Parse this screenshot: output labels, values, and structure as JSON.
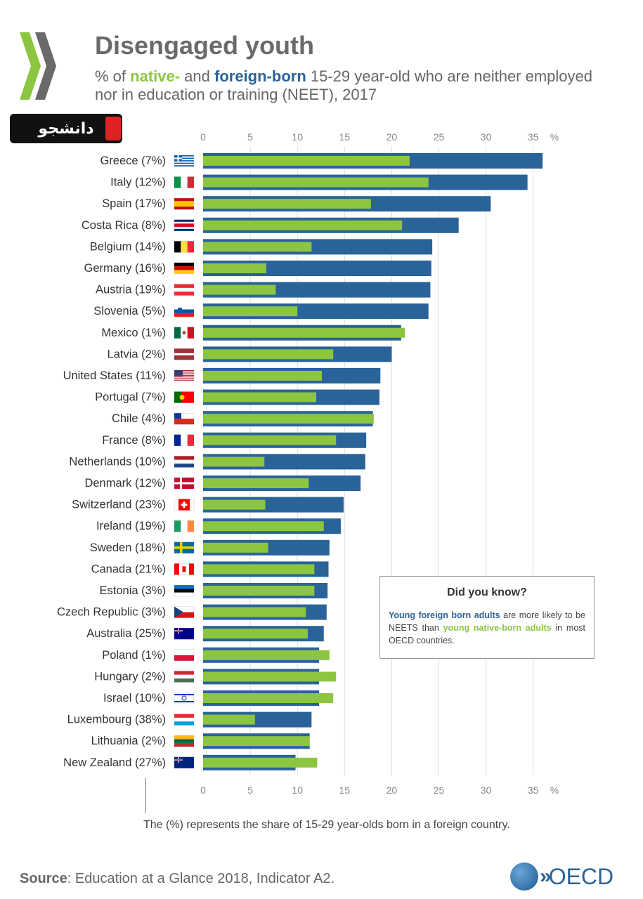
{
  "header": {
    "title": "Disengaged youth",
    "subtitle_prefix": "% of ",
    "subtitle_native": "native-",
    "subtitle_mid": " and ",
    "subtitle_foreign": "foreign-born",
    "subtitle_rest": " 15-29 year-old who are neither employed nor in education or training (NEET), 2017"
  },
  "stamp": {
    "text": "دانشجو"
  },
  "chart_data": {
    "type": "bar",
    "orientation": "horizontal",
    "x_ticks": [
      "0",
      "5",
      "10",
      "15",
      "20",
      "25",
      "30",
      "35"
    ],
    "x_unit": "%",
    "xlim": [
      0,
      37
    ],
    "grid": true,
    "categories": [
      "Greece (7%)",
      "Italy (12%)",
      "Spain (17%)",
      "Costa Rica (8%)",
      "Belgium (14%)",
      "Germany (16%)",
      "Austria (19%)",
      "Slovenia (5%)",
      "Mexico (1%)",
      "Latvia (2%)",
      "United States (11%)",
      "Portugal (7%)",
      "Chile (4%)",
      "France (8%)",
      "Netherlands (10%)",
      "Denmark (12%)",
      "Switzerland (23%)",
      "Ireland (19%)",
      "Sweden (18%)",
      "Canada (21%)",
      "Estonia (3%)",
      "Czech Republic (3%)",
      "Australia (25%)",
      "Poland (1%)",
      "Hungary (2%)",
      "Israel (10%)",
      "Luxembourg (38%)",
      "Lithuania (2%)",
      "New Zealand (27%)"
    ],
    "series": [
      {
        "key": "foreign",
        "values": [
          36.0,
          34.4,
          30.5,
          27.1,
          24.3,
          24.2,
          24.1,
          23.9,
          21.0,
          20.0,
          18.8,
          18.7,
          18.0,
          17.3,
          17.2,
          16.7,
          14.9,
          14.6,
          13.4,
          13.3,
          13.2,
          13.1,
          12.8,
          12.3,
          12.3,
          12.3,
          11.5,
          11.3,
          9.8
        ]
      },
      {
        "key": "native",
        "values": [
          21.9,
          23.9,
          17.8,
          21.1,
          11.5,
          6.7,
          7.7,
          10.0,
          21.4,
          13.8,
          12.6,
          12.0,
          18.1,
          14.1,
          6.5,
          11.2,
          6.6,
          12.8,
          6.9,
          11.8,
          11.8,
          10.9,
          11.1,
          13.4,
          14.1,
          13.8,
          5.5,
          11.3,
          12.1
        ]
      }
    ],
    "colors": {
      "foreign": "#2a6399",
      "native": "#8cc641"
    }
  },
  "flags": [
    "greece",
    "italy",
    "spain",
    "costa-rica",
    "belgium",
    "germany",
    "austria",
    "slovenia",
    "mexico",
    "latvia",
    "united-states",
    "portugal",
    "chile",
    "france",
    "netherlands",
    "denmark",
    "switzerland",
    "ireland",
    "sweden",
    "canada",
    "estonia",
    "czech-republic",
    "australia",
    "poland",
    "hungary",
    "israel",
    "luxembourg",
    "lithuania",
    "new-zealand"
  ],
  "callout": {
    "title": "Did you know?",
    "blue_text": "Young foreign born adults",
    "mid_text": " are more likely to be NEETS than ",
    "green_text": "young native-born adults",
    "end_text": " in most OECD countries."
  },
  "footnote": "The (%) represents the share of 15-29 year-olds born in a foreign country.",
  "source": {
    "label": "Source",
    "text": ": Education at a Glance 2018, Indicator A2."
  },
  "oecd": {
    "logo_text": "OECD",
    "chevrons": "»"
  }
}
